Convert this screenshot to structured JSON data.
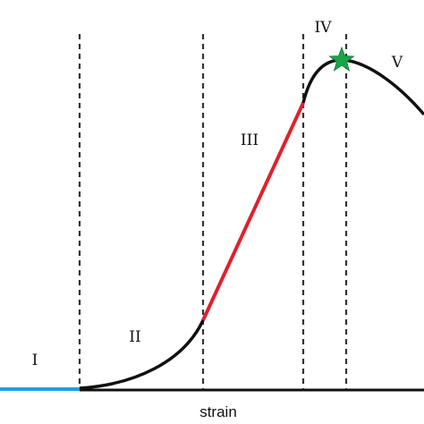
{
  "diagram": {
    "x_axis_label": "strain",
    "regions": [
      {
        "label": "I",
        "color": "#1ba1e2"
      },
      {
        "label": "II",
        "color": "#111111"
      },
      {
        "label": "III",
        "color": "#e0202a"
      },
      {
        "label": "IV",
        "color": "#111111"
      },
      {
        "label": "V",
        "color": "#111111"
      }
    ],
    "marker": {
      "shape": "star-icon",
      "color": "#19a64a",
      "meaning": "peak"
    },
    "line_colors": {
      "curve": "#111111",
      "linear": "#e0202a",
      "initial": "#1ba1e2",
      "dividers": "#333333"
    }
  }
}
